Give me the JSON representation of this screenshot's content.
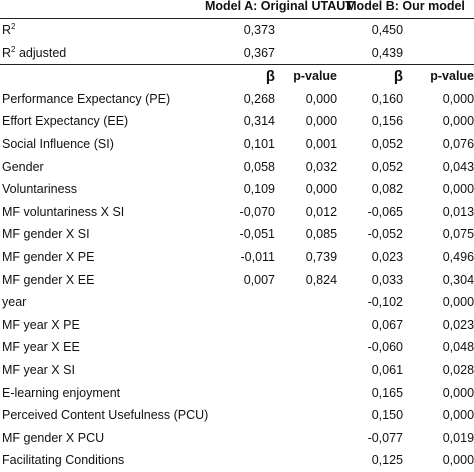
{
  "header": {
    "model_a": "Model A: Original UTAUT",
    "model_b": "Model B: Our model"
  },
  "fit": [
    {
      "label": "R",
      "sup": "2",
      "suffix": "",
      "a": "0,373",
      "b": "0,450"
    },
    {
      "label": "R",
      "sup": "2",
      "suffix": " adjusted",
      "a": "0,367",
      "b": "0,439"
    }
  ],
  "subheader": {
    "beta": "β",
    "pvalue": "p-value"
  },
  "rows": [
    {
      "label": "Performance  Expectancy (PE)",
      "a_beta": "0,268",
      "a_p": "0,000",
      "b_beta": "0,160",
      "b_p": "0,000"
    },
    {
      "label": "Effort Expectancy (EE)",
      "a_beta": "0,314",
      "a_p": "0,000",
      "b_beta": "0,156",
      "b_p": "0,000"
    },
    {
      "label": "Social Influence (SI)",
      "a_beta": "0,101",
      "a_p": "0,001",
      "b_beta": "0,052",
      "b_p": "0,076"
    },
    {
      "label": "Gender",
      "a_beta": "0,058",
      "a_p": "0,032",
      "b_beta": "0,052",
      "b_p": "0,043"
    },
    {
      "label": "Voluntariness",
      "a_beta": "0,109",
      "a_p": "0,000",
      "b_beta": "0,082",
      "b_p": "0,000"
    },
    {
      "label": "MF voluntariness X SI",
      "a_beta": "-0,070",
      "a_p": "0,012",
      "b_beta": "-0,065",
      "b_p": "0,013"
    },
    {
      "label": "MF gender X SI",
      "a_beta": "-0,051",
      "a_p": "0,085",
      "b_beta": "-0,052",
      "b_p": "0,075"
    },
    {
      "label": "MF gender X PE",
      "a_beta": "-0,011",
      "a_p": "0,739",
      "b_beta": "0,023",
      "b_p": "0,496"
    },
    {
      "label": "MF gender X EE",
      "a_beta": "0,007",
      "a_p": "0,824",
      "b_beta": "0,033",
      "b_p": "0,304"
    },
    {
      "label": "year",
      "a_beta": "",
      "a_p": "",
      "b_beta": "-0,102",
      "b_p": "0,000"
    },
    {
      "label": "MF year X PE",
      "a_beta": "",
      "a_p": "",
      "b_beta": "0,067",
      "b_p": "0,023"
    },
    {
      "label": "MF year X EE",
      "a_beta": "",
      "a_p": "",
      "b_beta": "-0,060",
      "b_p": "0,048"
    },
    {
      "label": "MF year X SI",
      "a_beta": "",
      "a_p": "",
      "b_beta": "0,061",
      "b_p": "0,028"
    },
    {
      "label": "E-learning enjoyment",
      "a_beta": "",
      "a_p": "",
      "b_beta": "0,165",
      "b_p": "0,000"
    },
    {
      "label": "Perceived Content Usefulness (PCU)",
      "a_beta": "",
      "a_p": "",
      "b_beta": "0,150",
      "b_p": "0,000"
    },
    {
      "label": "MF gender X PCU",
      "a_beta": "",
      "a_p": "",
      "b_beta": "-0,077",
      "b_p": "0,019"
    },
    {
      "label": "Facilitating Conditions",
      "a_beta": "",
      "a_p": "",
      "b_beta": "0,125",
      "b_p": "0,000"
    }
  ]
}
